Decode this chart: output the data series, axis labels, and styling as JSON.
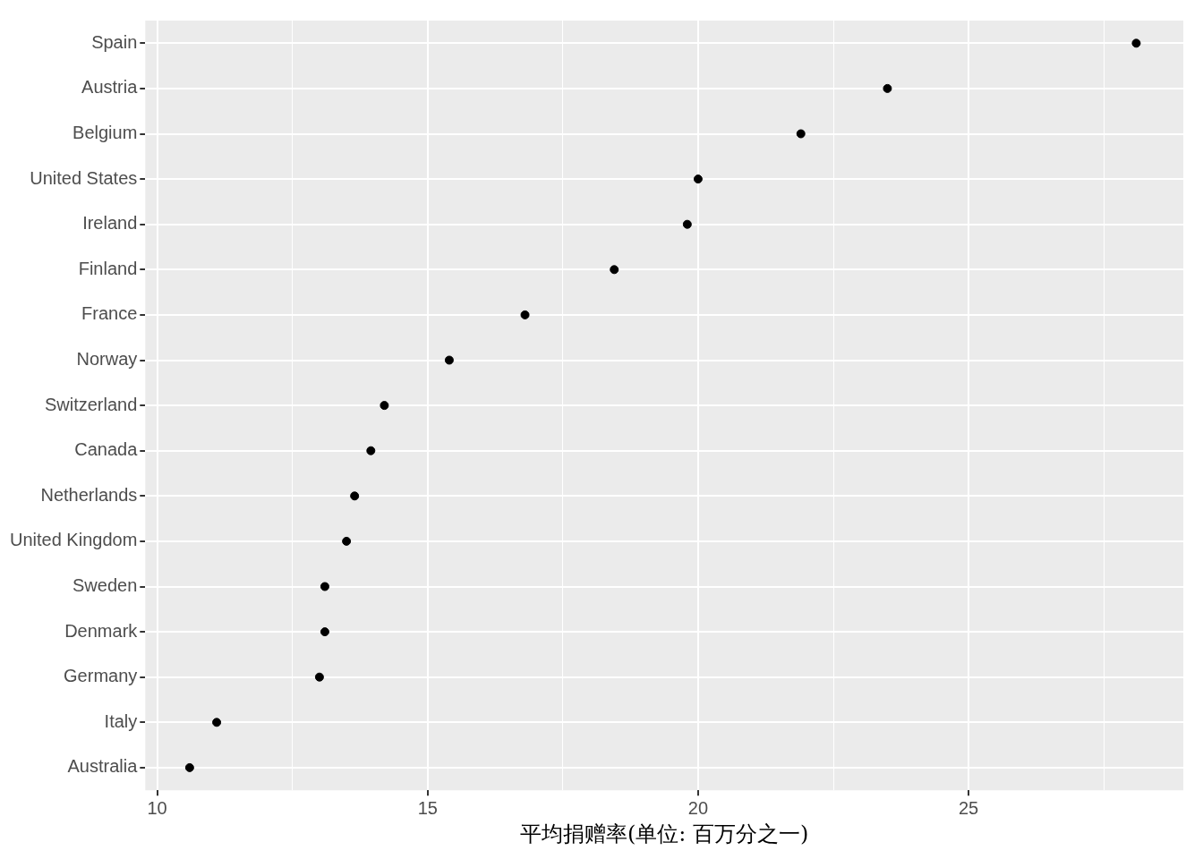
{
  "chart_data": {
    "type": "scatter",
    "xlabel": "平均捐赠率(单位: 百万分之一)",
    "categories": [
      "Spain",
      "Austria",
      "Belgium",
      "United States",
      "Ireland",
      "Finland",
      "France",
      "Norway",
      "Switzerland",
      "Canada",
      "Netherlands",
      "United Kingdom",
      "Sweden",
      "Denmark",
      "Germany",
      "Italy",
      "Australia"
    ],
    "values": [
      28.1,
      23.5,
      21.9,
      20.0,
      19.8,
      18.45,
      16.8,
      15.4,
      14.2,
      13.95,
      13.65,
      13.5,
      13.1,
      13.1,
      13.0,
      11.1,
      10.6
    ],
    "color": "#000000",
    "marker": "circle",
    "orientation": "horizontal",
    "grid": true,
    "legend": false,
    "xlim": [
      9.78,
      28.97
    ],
    "xticks": [
      10,
      {
        "value": 12.5,
        "label": null
      },
      15,
      {
        "value": 17.5,
        "label": null
      },
      20,
      {
        "value": 22.5,
        "label": null
      },
      25,
      {
        "value": 27.5,
        "label": null
      }
    ]
  }
}
